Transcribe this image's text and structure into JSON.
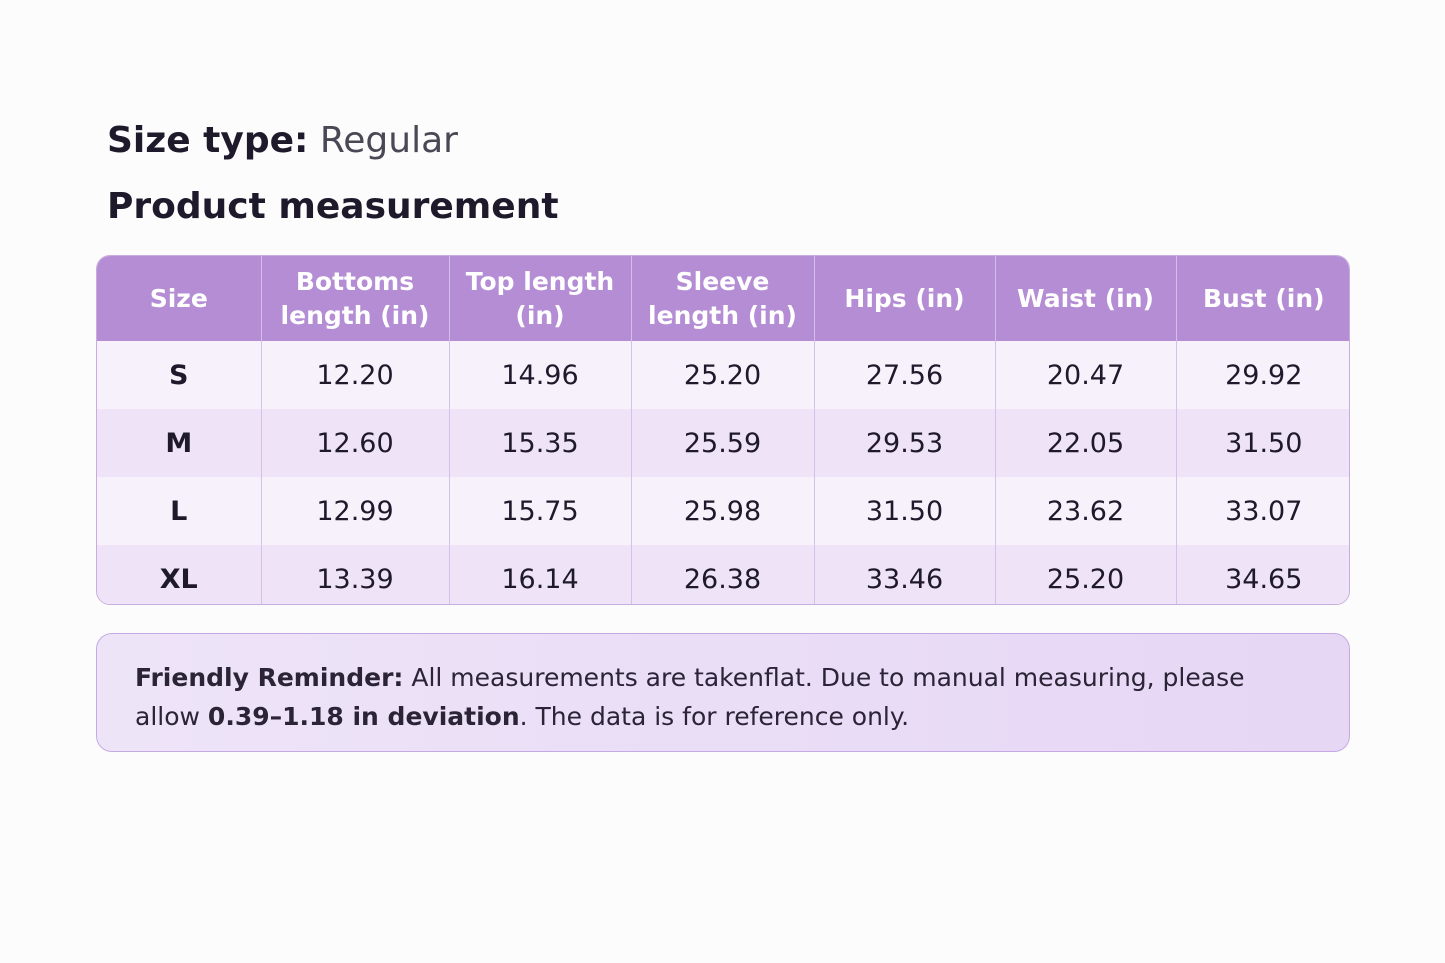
{
  "header": {
    "size_type_label": "Size type:",
    "size_type_value": "Regular",
    "section_title": "Product measurement"
  },
  "table": {
    "columns": [
      "Size",
      "Bottoms length (in)",
      "Top length (in)",
      "Sleeve length (in)",
      "Hips (in)",
      "Waist (in)",
      "Bust (in)"
    ],
    "rows": [
      [
        "S",
        "12.20",
        "14.96",
        "25.20",
        "27.56",
        "20.47",
        "29.92"
      ],
      [
        "M",
        "12.60",
        "15.35",
        "25.59",
        "29.53",
        "22.05",
        "31.50"
      ],
      [
        "L",
        "12.99",
        "15.75",
        "25.98",
        "31.50",
        "23.62",
        "33.07"
      ],
      [
        "XL",
        "13.39",
        "16.14",
        "26.38",
        "33.46",
        "25.20",
        "34.65"
      ]
    ]
  },
  "reminder": {
    "label": "Friendly Reminder:",
    "text_1": "All measurements are takenflat. Due to manual measuring, please allow",
    "emphasis": "0.39–1.18 in deviation",
    "text_2": ". The data is for reference only."
  }
}
